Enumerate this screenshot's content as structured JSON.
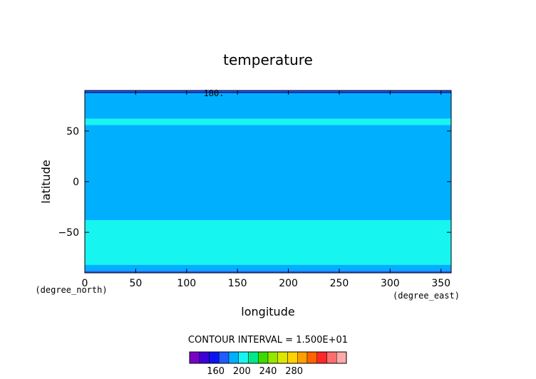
{
  "chart_data": {
    "type": "heatmap",
    "title": "temperature",
    "xlabel": "longitude",
    "ylabel": "latitude",
    "x_unit": "(degree_east)",
    "y_unit": "(degree_north)",
    "xlim": [
      0,
      360
    ],
    "ylim": [
      -90,
      90
    ],
    "x_ticks": [
      0,
      50,
      100,
      150,
      200,
      250,
      300,
      350
    ],
    "y_ticks": [
      -50,
      0,
      50
    ],
    "contour_interval_text": "CONTOUR INTERVAL = 1.500E+01",
    "contour_label": "180.",
    "contour_label_position": {
      "lon": 120,
      "lat": 88
    },
    "bands": [
      {
        "level": 180,
        "color": "#1e5dff",
        "lat_edges": [
          [
            -90,
            -88
          ],
          [
            87.5,
            90
          ]
        ]
      },
      {
        "level": 195,
        "color": "#00b0ff",
        "lat_edges": [
          [
            -88,
            -82
          ],
          [
            -38,
            56
          ],
          [
            62,
            87.5
          ]
        ]
      },
      {
        "level": 210,
        "color": "#17f5f0",
        "lat_edges": [
          [
            -82,
            -38
          ],
          [
            56,
            62
          ]
        ]
      }
    ],
    "colorbar": {
      "tick_labels": [
        160,
        200,
        240,
        280
      ],
      "levels": [
        135,
        150,
        165,
        180,
        195,
        210,
        225,
        240,
        255,
        270,
        285,
        300
      ],
      "colors": [
        "#7b00c8",
        "#3d00d8",
        "#0a14f0",
        "#1e5dff",
        "#00b0ff",
        "#17f5f0",
        "#00e88c",
        "#3cdc00",
        "#96e600",
        "#dce600",
        "#ffd200",
        "#ffa000",
        "#ff6400",
        "#ff2828",
        "#ff6e6e",
        "#ffaaaa"
      ]
    }
  }
}
